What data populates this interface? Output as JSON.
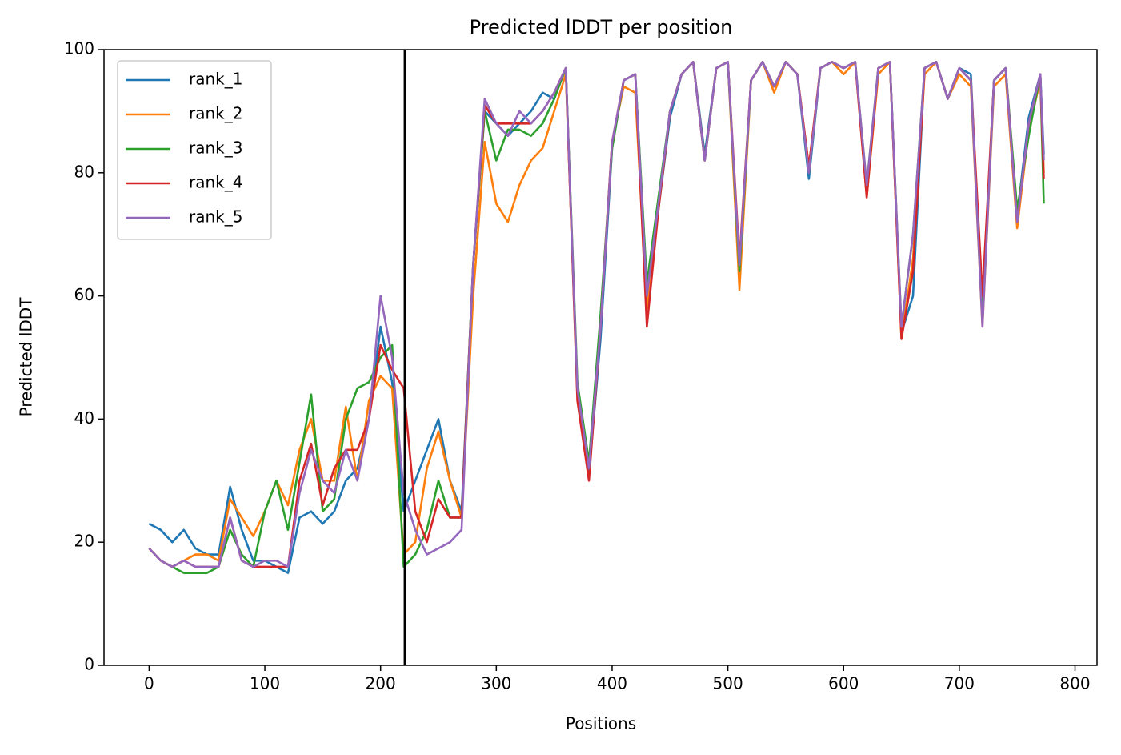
{
  "chart_data": {
    "type": "line",
    "title": "Predicted lDDT per position",
    "xlabel": "Positions",
    "ylabel": "Predicted lDDT",
    "x": [
      0,
      10,
      20,
      30,
      40,
      50,
      60,
      70,
      80,
      90,
      100,
      110,
      120,
      130,
      140,
      150,
      160,
      170,
      180,
      190,
      200,
      210,
      220,
      230,
      240,
      250,
      260,
      270,
      280,
      290,
      300,
      310,
      320,
      330,
      340,
      350,
      360,
      370,
      380,
      390,
      400,
      410,
      420,
      430,
      440,
      450,
      460,
      470,
      480,
      490,
      500,
      510,
      520,
      530,
      540,
      550,
      560,
      570,
      580,
      590,
      600,
      610,
      620,
      630,
      640,
      650,
      660,
      670,
      680,
      690,
      700,
      710,
      720,
      730,
      740,
      750,
      760,
      770,
      773
    ],
    "series": [
      {
        "name": "rank_1",
        "color": "#1f77b4",
        "values": [
          23,
          22,
          20,
          22,
          19,
          18,
          18,
          29,
          22,
          17,
          17,
          16,
          15,
          24,
          25,
          23,
          25,
          30,
          32,
          40,
          55,
          46,
          25,
          30,
          35,
          40,
          30,
          25,
          65,
          90,
          88,
          86,
          88,
          90,
          93,
          92,
          97,
          44,
          31,
          53,
          84,
          95,
          96,
          61,
          74,
          89,
          96,
          98,
          83,
          97,
          98,
          64,
          95,
          98,
          94,
          98,
          96,
          79,
          97,
          98,
          97,
          98,
          77,
          97,
          98,
          54,
          60,
          97,
          98,
          92,
          97,
          96,
          56,
          95,
          97,
          73,
          89,
          96,
          83
        ]
      },
      {
        "name": "rank_2",
        "color": "#ff7f0e",
        "values": [
          19,
          17,
          16,
          17,
          18,
          18,
          17,
          27,
          24,
          21,
          25,
          30,
          26,
          35,
          40,
          30,
          30,
          42,
          30,
          43,
          47,
          45,
          18,
          20,
          32,
          38,
          30,
          24,
          60,
          85,
          75,
          72,
          78,
          82,
          84,
          90,
          96,
          45,
          32,
          56,
          85,
          94,
          93,
          58,
          74,
          90,
          96,
          98,
          82,
          97,
          98,
          61,
          95,
          98,
          93,
          98,
          96,
          81,
          97,
          98,
          96,
          98,
          76,
          96,
          98,
          53,
          66,
          96,
          98,
          92,
          96,
          94,
          55,
          94,
          96,
          71,
          87,
          95,
          80
        ]
      },
      {
        "name": "rank_3",
        "color": "#2ca02c",
        "values": [
          19,
          17,
          16,
          15,
          15,
          15,
          16,
          22,
          18,
          16,
          25,
          30,
          22,
          33,
          44,
          25,
          27,
          40,
          45,
          46,
          50,
          52,
          16,
          18,
          22,
          30,
          24,
          24,
          65,
          90,
          82,
          87,
          87,
          86,
          88,
          92,
          97,
          46,
          33,
          57,
          84,
          95,
          96,
          62,
          76,
          90,
          96,
          98,
          82,
          97,
          98,
          64,
          95,
          98,
          94,
          98,
          96,
          80,
          97,
          98,
          97,
          98,
          78,
          97,
          98,
          55,
          70,
          97,
          98,
          92,
          97,
          95,
          56,
          95,
          97,
          74,
          86,
          96,
          75
        ]
      },
      {
        "name": "rank_4",
        "color": "#d62728",
        "values": [
          19,
          17,
          16,
          17,
          16,
          16,
          16,
          24,
          17,
          16,
          16,
          16,
          16,
          30,
          36,
          26,
          32,
          35,
          35,
          40,
          52,
          48,
          45,
          25,
          20,
          27,
          24,
          24,
          65,
          91,
          88,
          88,
          88,
          88,
          90,
          93,
          97,
          43,
          30,
          55,
          85,
          95,
          96,
          55,
          74,
          90,
          96,
          98,
          82,
          97,
          98,
          66,
          95,
          98,
          94,
          98,
          96,
          81,
          97,
          98,
          97,
          98,
          76,
          97,
          98,
          53,
          64,
          97,
          98,
          92,
          97,
          95,
          60,
          95,
          97,
          72,
          88,
          96,
          79
        ]
      },
      {
        "name": "rank_5",
        "color": "#9467bd",
        "values": [
          19,
          17,
          16,
          17,
          16,
          16,
          16,
          24,
          17,
          16,
          17,
          17,
          16,
          28,
          35,
          30,
          28,
          35,
          30,
          40,
          60,
          50,
          28,
          22,
          18,
          19,
          20,
          22,
          65,
          92,
          88,
          86,
          90,
          88,
          90,
          93,
          97,
          45,
          32,
          55,
          85,
          95,
          96,
          60,
          75,
          90,
          96,
          98,
          82,
          97,
          98,
          65,
          95,
          98,
          94,
          98,
          96,
          80,
          97,
          98,
          97,
          98,
          78,
          97,
          98,
          55,
          70,
          97,
          98,
          92,
          97,
          95,
          55,
          95,
          97,
          72,
          88,
          96,
          82
        ]
      }
    ],
    "vline": 221,
    "xlim": [
      -39,
      819
    ],
    "xticks": [
      0,
      100,
      200,
      300,
      400,
      500,
      600,
      700,
      800
    ],
    "ylim": [
      0,
      100
    ],
    "yticks": [
      0,
      20,
      40,
      60,
      80,
      100
    ],
    "legend": "upper left"
  }
}
